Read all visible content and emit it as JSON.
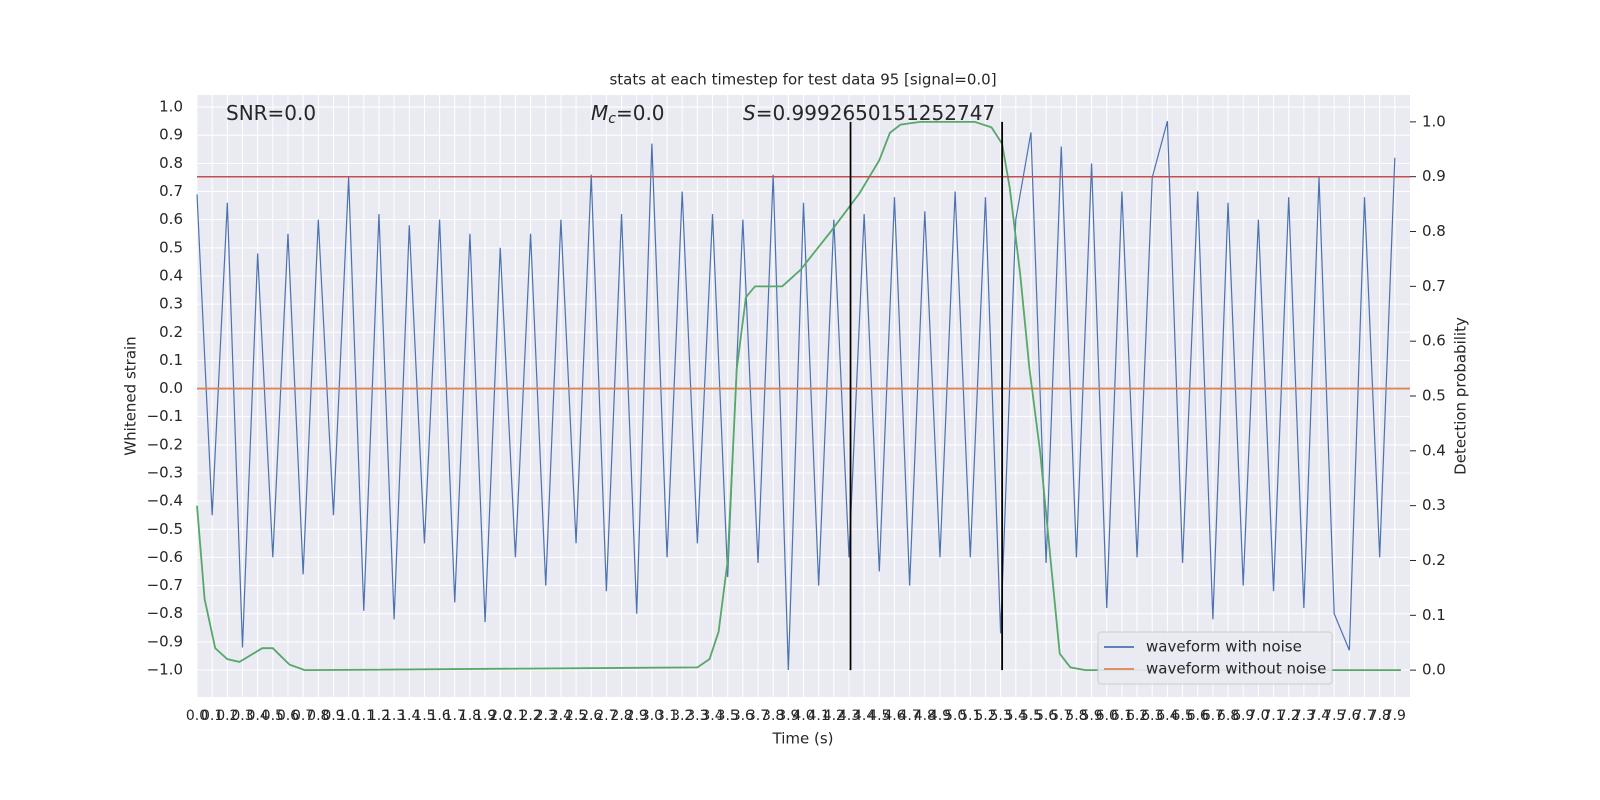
{
  "chart_data": {
    "type": "line",
    "title": "stats at each timestep for test data 95 [signal=0.0]",
    "xlabel": "Time (s)",
    "ylabel": "Whitened strain",
    "y2label": "Detection probability",
    "annotations": [
      {
        "text": "SNR=0.0"
      },
      {
        "symbol": "M",
        "subscript": "c",
        "text": "=0.0"
      },
      {
        "symbol": "S",
        "text": "=0.9992650151252747"
      }
    ],
    "xlim": [
      0,
      8
    ],
    "ylim": [
      -1.096,
      1.043
    ],
    "y2lim": [
      -0.049,
      1.049
    ],
    "grid": true,
    "background": "#eaeaf2",
    "legend": "lower right",
    "xticks": [
      {
        "value": 0,
        "label": "0.0"
      },
      {
        "value": 0.1,
        "label": "0.1"
      },
      {
        "value": 0.2,
        "label": "0.2"
      },
      {
        "value": 0.3,
        "label": "0.3"
      },
      {
        "value": 0.4,
        "label": "0.4"
      },
      {
        "value": 0.5,
        "label": "0.5"
      },
      {
        "value": 0.6,
        "label": "0.6"
      },
      {
        "value": 0.7,
        "label": "0.7"
      },
      {
        "value": 0.8,
        "label": "0.8"
      },
      {
        "value": 0.9,
        "label": "0.9"
      },
      {
        "value": 1,
        "label": "1.0"
      },
      {
        "value": 1.1,
        "label": "1.1"
      },
      {
        "value": 1.2,
        "label": "1.2"
      },
      {
        "value": 1.3,
        "label": "1.3"
      },
      {
        "value": 1.4,
        "label": "1.4"
      },
      {
        "value": 1.5,
        "label": "1.5"
      },
      {
        "value": 1.6,
        "label": "1.6"
      },
      {
        "value": 1.7,
        "label": "1.7"
      },
      {
        "value": 1.8,
        "label": "1.8"
      },
      {
        "value": 1.9,
        "label": "1.9"
      },
      {
        "value": 2,
        "label": "2.0"
      },
      {
        "value": 2.1,
        "label": "2.1"
      },
      {
        "value": 2.2,
        "label": "2.2"
      },
      {
        "value": 2.3,
        "label": "2.3"
      },
      {
        "value": 2.4,
        "label": "2.4"
      },
      {
        "value": 2.5,
        "label": "2.5"
      },
      {
        "value": 2.6,
        "label": "2.6"
      },
      {
        "value": 2.7,
        "label": "2.7"
      },
      {
        "value": 2.8,
        "label": "2.8"
      },
      {
        "value": 2.9,
        "label": "2.9"
      },
      {
        "value": 3,
        "label": "3.0"
      },
      {
        "value": 3.1,
        "label": "3.1"
      },
      {
        "value": 3.2,
        "label": "3.2"
      },
      {
        "value": 3.3,
        "label": "3.3"
      },
      {
        "value": 3.4,
        "label": "3.4"
      },
      {
        "value": 3.5,
        "label": "3.5"
      },
      {
        "value": 3.6,
        "label": "3.6"
      },
      {
        "value": 3.7,
        "label": "3.7"
      },
      {
        "value": 3.8,
        "label": "3.8"
      },
      {
        "value": 3.9,
        "label": "3.9"
      },
      {
        "value": 4,
        "label": "4.0"
      },
      {
        "value": 4.1,
        "label": "4.1"
      },
      {
        "value": 4.2,
        "label": "4.2"
      },
      {
        "value": 4.3,
        "label": "4.3"
      },
      {
        "value": 4.4,
        "label": "4.4"
      },
      {
        "value": 4.5,
        "label": "4.5"
      },
      {
        "value": 4.6,
        "label": "4.6"
      },
      {
        "value": 4.7,
        "label": "4.7"
      },
      {
        "value": 4.8,
        "label": "4.8"
      },
      {
        "value": 4.9,
        "label": "4.9"
      },
      {
        "value": 5,
        "label": "5.0"
      },
      {
        "value": 5.1,
        "label": "5.1"
      },
      {
        "value": 5.2,
        "label": "5.2"
      },
      {
        "value": 5.3,
        "label": "5.3"
      },
      {
        "value": 5.4,
        "label": "5.4"
      },
      {
        "value": 5.5,
        "label": "5.5"
      },
      {
        "value": 5.6,
        "label": "5.6"
      },
      {
        "value": 5.7,
        "label": "5.7"
      },
      {
        "value": 5.8,
        "label": "5.8"
      },
      {
        "value": 5.9,
        "label": "5.9"
      },
      {
        "value": 6,
        "label": "6.0"
      },
      {
        "value": 6.1,
        "label": "6.1"
      },
      {
        "value": 6.2,
        "label": "6.2"
      },
      {
        "value": 6.3,
        "label": "6.3"
      },
      {
        "value": 6.4,
        "label": "6.4"
      },
      {
        "value": 6.5,
        "label": "6.5"
      },
      {
        "value": 6.6,
        "label": "6.6"
      },
      {
        "value": 6.7,
        "label": "6.7"
      },
      {
        "value": 6.8,
        "label": "6.8"
      },
      {
        "value": 6.9,
        "label": "6.9"
      },
      {
        "value": 7,
        "label": "7.0"
      },
      {
        "value": 7.1,
        "label": "7.1"
      },
      {
        "value": 7.2,
        "label": "7.2"
      },
      {
        "value": 7.3,
        "label": "7.3"
      },
      {
        "value": 7.4,
        "label": "7.4"
      },
      {
        "value": 7.5,
        "label": "7.5"
      },
      {
        "value": 7.6,
        "label": "7.6"
      },
      {
        "value": 7.7,
        "label": "7.7"
      },
      {
        "value": 7.8,
        "label": "7.8"
      },
      {
        "value": 7.9,
        "label": "7.9"
      }
    ],
    "yticks": [
      {
        "value": 1,
        "label": "1.0"
      },
      {
        "value": 0.9,
        "label": "0.9"
      },
      {
        "value": 0.8,
        "label": "0.8"
      },
      {
        "value": 0.7,
        "label": "0.7"
      },
      {
        "value": 0.6,
        "label": "0.6"
      },
      {
        "value": 0.5,
        "label": "0.5"
      },
      {
        "value": 0.4,
        "label": "0.4"
      },
      {
        "value": 0.3,
        "label": "0.3"
      },
      {
        "value": 0.2,
        "label": "0.2"
      },
      {
        "value": 0.1,
        "label": "0.1"
      },
      {
        "value": 0,
        "label": "0.0"
      },
      {
        "value": -0.1,
        "label": "−0.1"
      },
      {
        "value": -0.2,
        "label": "−0.2"
      },
      {
        "value": -0.3,
        "label": "−0.3"
      },
      {
        "value": -0.4,
        "label": "−0.4"
      },
      {
        "value": -0.5,
        "label": "−0.5"
      },
      {
        "value": -0.6,
        "label": "−0.6"
      },
      {
        "value": -0.7,
        "label": "−0.7"
      },
      {
        "value": -0.8,
        "label": "−0.8"
      },
      {
        "value": -0.9,
        "label": "−0.9"
      },
      {
        "value": -1,
        "label": "−1.0"
      }
    ],
    "y2ticks": [
      {
        "value": 0,
        "label": "0.0"
      },
      {
        "value": 0.1,
        "label": "0.1"
      },
      {
        "value": 0.2,
        "label": "0.2"
      },
      {
        "value": 0.3,
        "label": "0.3"
      },
      {
        "value": 0.4,
        "label": "0.4"
      },
      {
        "value": 0.5,
        "label": "0.5"
      },
      {
        "value": 0.6,
        "label": "0.6"
      },
      {
        "value": 0.7,
        "label": "0.7"
      },
      {
        "value": 0.8,
        "label": "0.8"
      },
      {
        "value": 0.9,
        "label": "0.9"
      },
      {
        "value": 1,
        "label": "1.0"
      }
    ],
    "series": [
      {
        "name": "waveform with noise",
        "color": "#4c72b0",
        "x": [
          0,
          0.1,
          0.2,
          0.3,
          0.4,
          0.5,
          0.6,
          0.7,
          0.8,
          0.9,
          1,
          1.1,
          1.2,
          1.3,
          1.4,
          1.5,
          1.6,
          1.7,
          1.8,
          1.9,
          2,
          2.1,
          2.2,
          2.3,
          2.4,
          2.5,
          2.6,
          2.7,
          2.8,
          2.9,
          3,
          3.1,
          3.2,
          3.3,
          3.4,
          3.5,
          3.6,
          3.7,
          3.8,
          3.9,
          4,
          4.1,
          4.2,
          4.3,
          4.4,
          4.5,
          4.6,
          4.7,
          4.8,
          4.9,
          5,
          5.1,
          5.2,
          5.3,
          5.4,
          5.5,
          5.6,
          5.7,
          5.8,
          5.9,
          6,
          6.1,
          6.2,
          6.3,
          6.4,
          6.5,
          6.6,
          6.7,
          6.8,
          6.9,
          7,
          7.1,
          7.2,
          7.3,
          7.4,
          7.5,
          7.6,
          7.7,
          7.8,
          7.9
        ],
        "values": [
          0.69,
          -0.45,
          0.66,
          -0.92,
          0.48,
          -0.6,
          0.55,
          -0.66,
          0.6,
          -0.45,
          0.75,
          -0.79,
          0.62,
          -0.82,
          0.58,
          -0.55,
          0.6,
          -0.76,
          0.55,
          -0.83,
          0.5,
          -0.6,
          0.55,
          -0.7,
          0.6,
          -0.55,
          0.76,
          -0.72,
          0.62,
          -0.8,
          0.87,
          -0.6,
          0.7,
          -0.55,
          0.62,
          -0.67,
          0.6,
          -0.62,
          0.76,
          -1.0,
          0.66,
          -0.7,
          0.6,
          -0.6,
          0.62,
          -0.65,
          0.68,
          -0.7,
          0.63,
          -0.6,
          0.7,
          -0.6,
          0.68,
          -0.87,
          0.6,
          0.91,
          -0.62,
          0.86,
          -0.6,
          0.8,
          -0.78,
          0.7,
          -0.6,
          0.75,
          0.95,
          -0.62,
          0.7,
          -0.82,
          0.66,
          -0.7,
          0.6,
          -0.72,
          0.68,
          -0.78,
          0.75,
          -0.8,
          -0.93,
          0.68,
          -0.6,
          0.82
        ]
      },
      {
        "name": "waveform without noise",
        "color": "#dd8452",
        "x": [
          0,
          8
        ],
        "values": [
          0,
          0
        ]
      },
      {
        "color": "#55a868",
        "axis": "y2",
        "x": [
          0,
          0.05,
          0.12,
          0.2,
          0.28,
          0.43,
          0.5,
          0.61,
          0.71,
          3.3,
          3.38,
          3.44,
          3.5,
          3.56,
          3.62,
          3.68,
          3.86,
          3.98,
          4.18,
          4.37,
          4.5,
          4.57,
          4.64,
          4.77,
          5.13,
          5.24,
          5.31,
          5.36,
          5.43,
          5.49,
          5.56,
          5.63,
          5.69,
          5.76,
          5.86,
          7.94
        ],
        "values": [
          0.3,
          0.13,
          0.04,
          0.02,
          0.015,
          0.04,
          0.04,
          0.01,
          0,
          0.005,
          0.02,
          0.07,
          0.2,
          0.55,
          0.68,
          0.7,
          0.7,
          0.73,
          0.8,
          0.87,
          0.93,
          0.98,
          0.995,
          1,
          1,
          0.99,
          0.96,
          0.88,
          0.72,
          0.55,
          0.4,
          0.2,
          0.03,
          0.005,
          0,
          0
        ]
      }
    ],
    "threshold": {
      "value": 0.9,
      "axis": "y2",
      "color": "#c44e52"
    },
    "vlines": {
      "x": [
        4.31,
        5.31
      ],
      "color": "#000000"
    }
  }
}
